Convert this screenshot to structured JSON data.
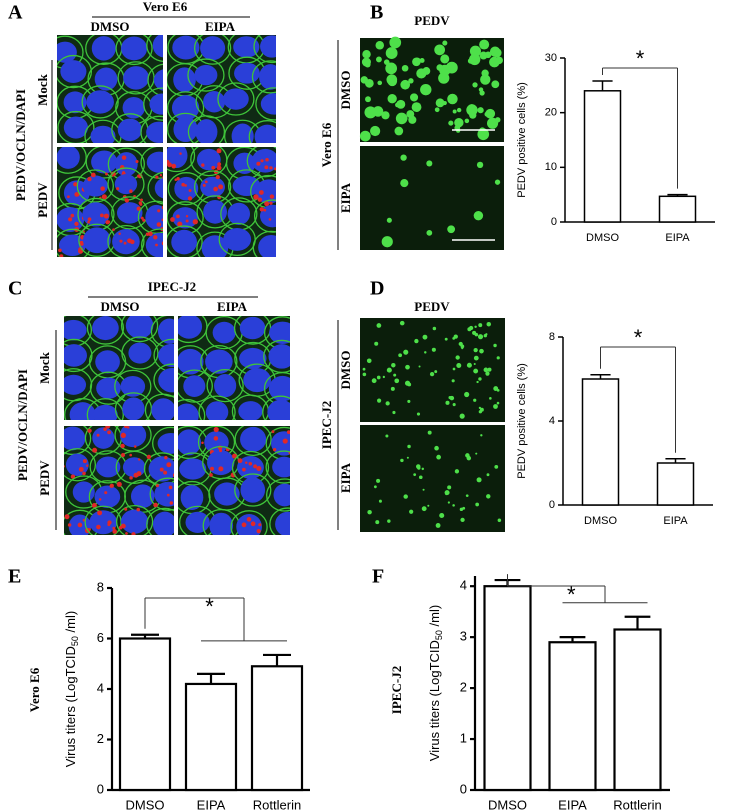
{
  "panels": {
    "A": {
      "label": "A",
      "header": "Vero E6",
      "columns": [
        "DMSO",
        "EIPA"
      ],
      "stain": "PEDV/OCLN/DAPI",
      "rows": [
        "Mock",
        "PEDV"
      ]
    },
    "B": {
      "label": "B",
      "header": "PEDV",
      "cell_line": "Vero E6",
      "rows": [
        "DMSO",
        "EIPA"
      ]
    },
    "C": {
      "label": "C",
      "header": "IPEC-J2",
      "columns": [
        "DMSO",
        "EIPA"
      ],
      "stain": "PEDV/OCLN/DAPI",
      "rows": [
        "Mock",
        "PEDV"
      ]
    },
    "D": {
      "label": "D",
      "header": "PEDV",
      "cell_line": "IPEC-J2",
      "rows": [
        "DMSO",
        "EIPA"
      ]
    },
    "E": {
      "label": "E",
      "cell_line": "Vero E6"
    },
    "F": {
      "label": "F",
      "cell_line": "IPEC-J2"
    }
  },
  "chart_data": [
    {
      "type": "bar",
      "y_label": "PEDV positive cells (%)",
      "categories": [
        "DMSO",
        "EIPA"
      ],
      "values": [
        24,
        4.7
      ],
      "errors": [
        1.8,
        0.3
      ],
      "color": "#ffffff",
      "ylim": [
        0,
        30
      ],
      "yticks": [
        0,
        10,
        20,
        30
      ],
      "annotations": [
        "*"
      ]
    },
    {
      "type": "bar",
      "y_label": "PEDV positive cells (%)",
      "categories": [
        "DMSO",
        "EIPA"
      ],
      "values": [
        6,
        2
      ],
      "errors": [
        0.2,
        0.2
      ],
      "color": "#ffffff",
      "ylim": [
        0,
        8
      ],
      "yticks": [
        0,
        4,
        8
      ],
      "annotations": [
        "*"
      ]
    },
    {
      "type": "bar",
      "y_label": {
        "text": "Virus titers (LogTCID",
        "sub": "50",
        "tail": " /ml)"
      },
      "categories": [
        "DMSO",
        "EIPA",
        "Rottlerin"
      ],
      "values": [
        6.0,
        4.2,
        4.9
      ],
      "errors": [
        0.15,
        0.4,
        0.45
      ],
      "color": "#ffffff",
      "ylim": [
        0,
        8
      ],
      "yticks": [
        0,
        2,
        4,
        6,
        8
      ],
      "annotations": [
        "*"
      ]
    },
    {
      "type": "bar",
      "y_label": {
        "text": "Virus titers (LogTCID",
        "sub": "50",
        "tail": " /ml)"
      },
      "categories": [
        "DMSO",
        "EIPA",
        "Rottlerin"
      ],
      "values": [
        4.0,
        2.9,
        3.15
      ],
      "errors": [
        0.12,
        0.1,
        0.25
      ],
      "color": "#ffffff",
      "ylim": [
        0,
        4.2
      ],
      "yticks": [
        0,
        1,
        2,
        3,
        4
      ],
      "annotations": [
        "*"
      ]
    }
  ]
}
